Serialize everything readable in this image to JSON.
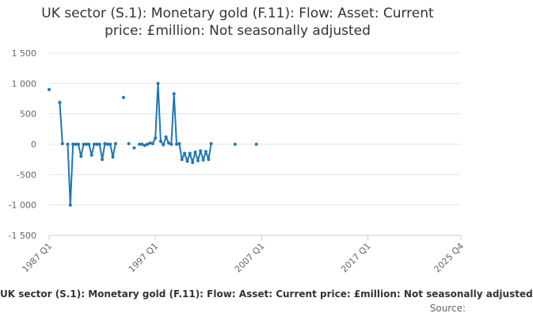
{
  "chart_data": {
    "type": "line",
    "title_line1": "UK sector (S.1): Monetary gold (F.11): Flow: Asset: Current",
    "title_line2": "price: £million: Not seasonally adjusted",
    "legend_label": "UK sector (S.1): Monetary gold (F.11): Flow: Asset: Current price: £million: Not seasonally adjusted",
    "source_label": "Source:",
    "xlabel": "",
    "ylabel": "",
    "ylim": [
      -1500,
      1500
    ],
    "y_ticks": [
      -1500,
      -1000,
      -500,
      0,
      500,
      1000,
      1500
    ],
    "y_tick_labels": [
      "-1 500",
      "-1 000",
      "-500",
      "0",
      "500",
      "1 000",
      "1 500"
    ],
    "x_tick_labels": [
      "1987 Q1",
      "1997 Q1",
      "2007 Q1",
      "2017 Q1",
      "2025 Q4"
    ],
    "x_tick_index": [
      0,
      40,
      80,
      120,
      155
    ],
    "colors": {
      "series": "#1f77b4",
      "grid": "#e6e6e6",
      "axis": "#cccccc",
      "text": "#666666"
    },
    "series": [
      {
        "name": "UK sector (S.1): Monetary gold (F.11): Flow: Asset: Current price: £million: Not seasonally adjusted",
        "x_start": "1987 Q1",
        "values": [
          900,
          null,
          null,
          null,
          690,
          10,
          null,
          0,
          -1000,
          0,
          0,
          0,
          -200,
          0,
          0,
          0,
          -180,
          0,
          0,
          0,
          -250,
          10,
          0,
          0,
          -210,
          10,
          null,
          null,
          770,
          null,
          10,
          null,
          -60,
          null,
          0,
          0,
          -20,
          0,
          20,
          10,
          100,
          1000,
          50,
          -10,
          120,
          20,
          0,
          830,
          0,
          10,
          -250,
          -150,
          -280,
          -150,
          -300,
          -130,
          -270,
          -110,
          -260,
          -120,
          -250,
          10,
          null,
          null,
          null,
          null,
          null,
          null,
          null,
          null,
          0,
          null,
          null,
          null,
          null,
          null,
          null,
          null,
          0
        ]
      }
    ]
  }
}
